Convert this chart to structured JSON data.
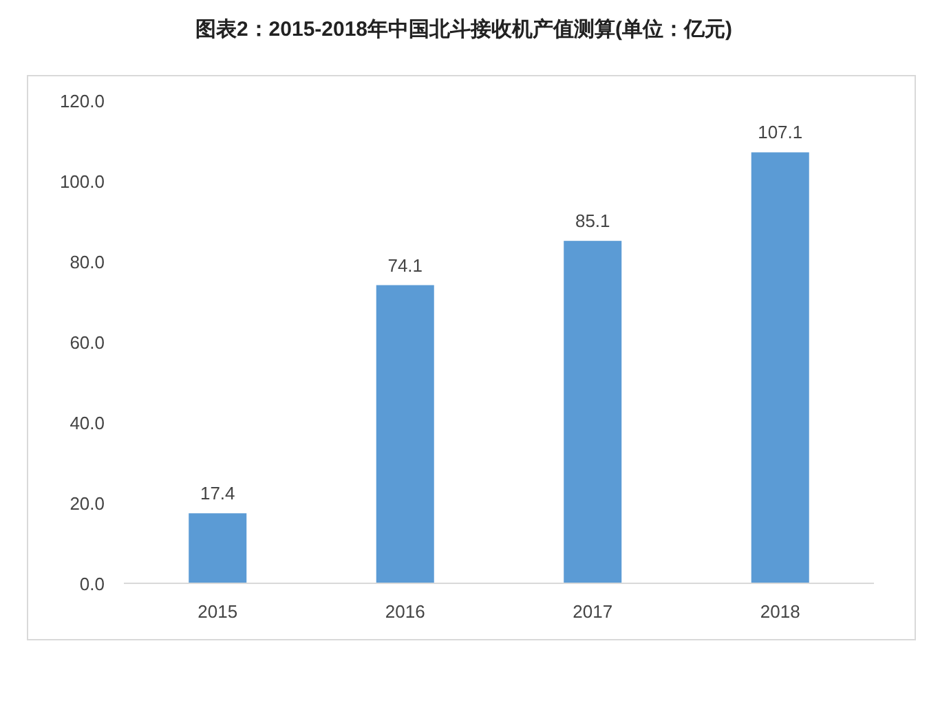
{
  "chart_data": {
    "type": "bar",
    "title": "图表2：2015-2018年中国北斗接收机产值测算(单位：亿元)",
    "categories": [
      "2015",
      "2016",
      "2017",
      "2018"
    ],
    "values": [
      17.4,
      74.1,
      85.1,
      107.1
    ],
    "color": "#5b9bd5",
    "ylim": [
      0,
      120
    ],
    "yticks": [
      {
        "value": 0,
        "label": "0.0"
      },
      {
        "value": 20,
        "label": "20.0"
      },
      {
        "value": 40,
        "label": "40.0"
      },
      {
        "value": 60,
        "label": "60.0"
      },
      {
        "value": 80,
        "label": "80.0"
      },
      {
        "value": 100,
        "label": "100.0"
      },
      {
        "value": 120,
        "label": "120.0"
      }
    ],
    "data_labels": true
  }
}
